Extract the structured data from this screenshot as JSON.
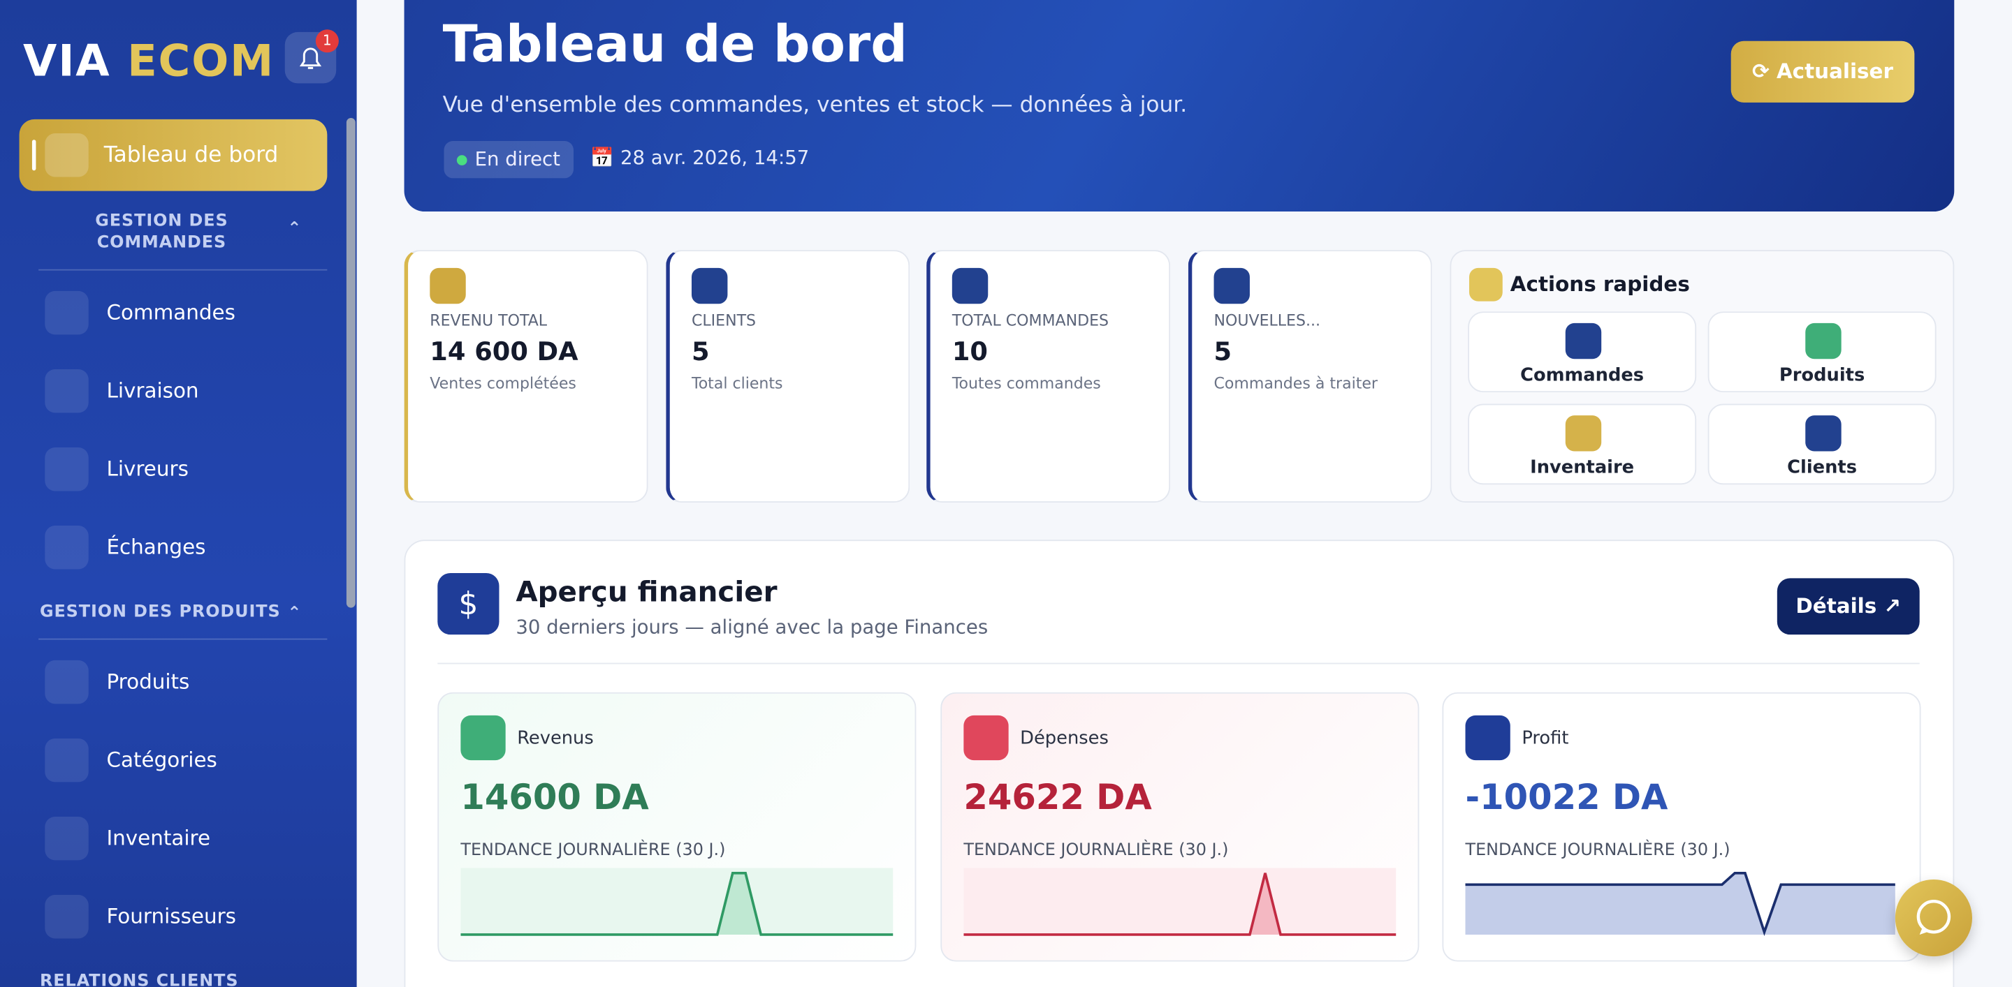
{
  "sidebar": {
    "logo": {
      "first": "VIA",
      "second": "ECOM"
    },
    "notification_count": "1",
    "active": "Tableau de bord",
    "sections": [
      {
        "title": "GESTION DES COMMANDES",
        "items": [
          "Commandes",
          "Livraison",
          "Livreurs",
          "Échanges"
        ]
      },
      {
        "title": "GESTION DES PRODUITS",
        "items": [
          "Produits",
          "Catégories",
          "Inventaire",
          "Fournisseurs"
        ]
      },
      {
        "title": "RELATIONS CLIENTS",
        "items": []
      }
    ]
  },
  "header": {
    "title": "Tableau de bord",
    "subtitle": "Vue d'ensemble des commandes, ventes et stock — données à jour.",
    "status": "En direct",
    "date": "28 avr. 2026, 14:57",
    "button": "Actualiser"
  },
  "stats": [
    {
      "label": "REVENU TOTAL",
      "value": "14 600 DA",
      "sub": "Ventes complétées"
    },
    {
      "label": "CLIENTS",
      "value": "5",
      "sub": "Total clients"
    },
    {
      "label": "TOTAL COMMANDES",
      "value": "10",
      "sub": "Toutes commandes"
    },
    {
      "label": "NOUVELLES...",
      "value": "5",
      "sub": "Commandes à traiter"
    }
  ],
  "quick_actions": {
    "title": "Actions rapides",
    "items": [
      "Commandes",
      "Produits",
      "Inventaire",
      "Clients"
    ]
  },
  "finance": {
    "title": "Aperçu financier",
    "subtitle": "30 derniers jours — aligné avec la page Finances",
    "button": "Détails",
    "cards": [
      {
        "label": "Revenus",
        "value": "14600 DA",
        "trend": "TENDANCE JOURNALIÈRE (30 J.)"
      },
      {
        "label": "Dépenses",
        "value": "24622 DA",
        "trend": "TENDANCE JOURNALIÈRE (30 J.)"
      },
      {
        "label": "Profit",
        "value": "-10022 DA",
        "trend": "TENDANCE JOURNALIÈRE (30 J.)"
      }
    ]
  }
}
